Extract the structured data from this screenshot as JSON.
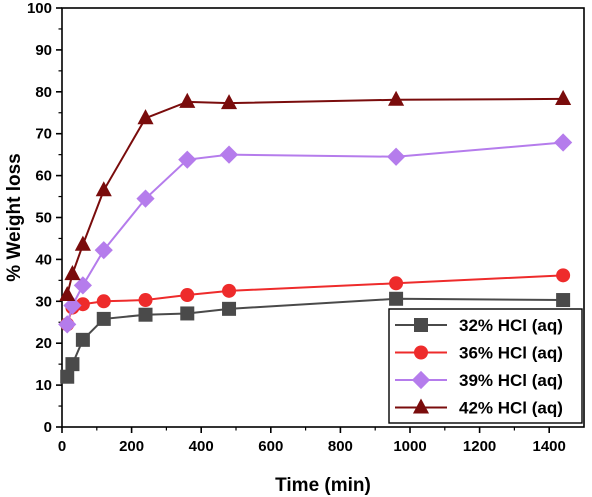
{
  "chart_data": {
    "type": "line",
    "xlabel": "Time (min)",
    "ylabel": "% Weight loss",
    "xlim": [
      0,
      1500
    ],
    "ylim": [
      0,
      100
    ],
    "x_ticks": [
      0,
      200,
      400,
      600,
      800,
      1000,
      1200,
      1400
    ],
    "y_ticks": [
      0,
      10,
      20,
      30,
      40,
      50,
      60,
      70,
      80,
      90,
      100
    ],
    "grid": false,
    "legend_position": "bottom-right",
    "series": [
      {
        "name": "32% HCl (aq)",
        "color": "#4a4a4a",
        "marker": "square",
        "points": [
          [
            15,
            12.0
          ],
          [
            30,
            15.0
          ],
          [
            60,
            20.8
          ],
          [
            120,
            25.8
          ],
          [
            240,
            26.8
          ],
          [
            360,
            27.1
          ],
          [
            480,
            28.2
          ],
          [
            960,
            30.6
          ],
          [
            1440,
            30.3
          ]
        ]
      },
      {
        "name": "36% HCl (aq)",
        "color": "#ee2b2b",
        "marker": "circle",
        "points": [
          [
            15,
            24.5
          ],
          [
            30,
            28.5
          ],
          [
            60,
            29.3
          ],
          [
            120,
            30.0
          ],
          [
            240,
            30.3
          ],
          [
            360,
            31.5
          ],
          [
            480,
            32.5
          ],
          [
            960,
            34.3
          ],
          [
            1440,
            36.2
          ]
        ]
      },
      {
        "name": "39% HCl (aq)",
        "color": "#b57cec",
        "marker": "diamond",
        "points": [
          [
            15,
            24.5
          ],
          [
            30,
            29.0
          ],
          [
            60,
            33.8
          ],
          [
            120,
            42.2
          ],
          [
            240,
            54.5
          ],
          [
            360,
            63.8
          ],
          [
            480,
            65.0
          ],
          [
            960,
            64.5
          ],
          [
            1440,
            67.9
          ]
        ]
      },
      {
        "name": "42% HCl (aq)",
        "color": "#7a0c0c",
        "marker": "triangle",
        "points": [
          [
            15,
            31.5
          ],
          [
            30,
            36.5
          ],
          [
            60,
            43.5
          ],
          [
            120,
            56.5
          ],
          [
            240,
            73.7
          ],
          [
            360,
            77.6
          ],
          [
            480,
            77.3
          ],
          [
            960,
            78.1
          ],
          [
            1440,
            78.3
          ]
        ]
      }
    ]
  }
}
